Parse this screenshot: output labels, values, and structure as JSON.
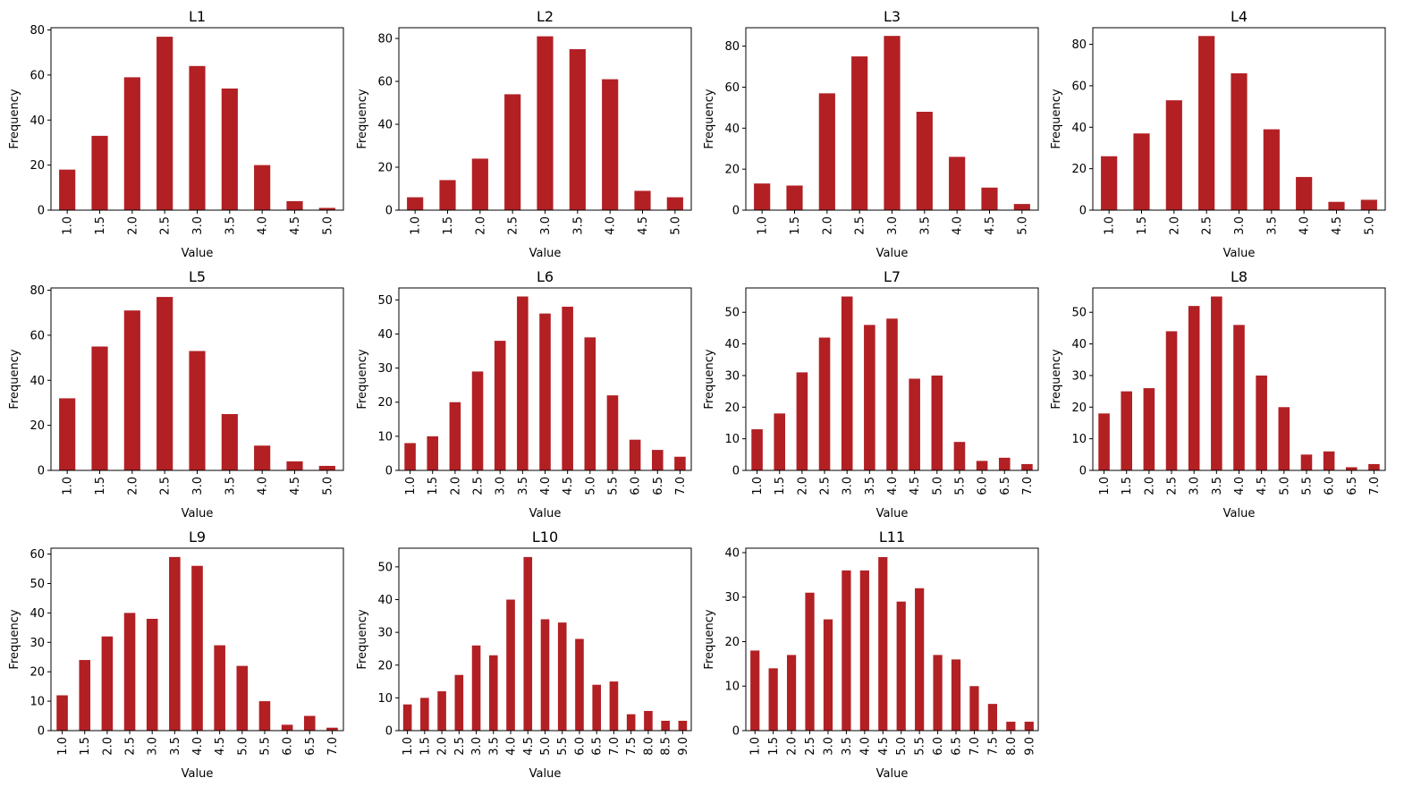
{
  "bar_color": "#b22024",
  "chart_data": [
    {
      "type": "bar",
      "title": "L1",
      "xlabel": "Value",
      "ylabel": "Frequency",
      "categories": [
        "1.0",
        "1.5",
        "2.0",
        "2.5",
        "3.0",
        "3.5",
        "4.0",
        "4.5",
        "5.0"
      ],
      "values": [
        18,
        33,
        59,
        77,
        64,
        54,
        20,
        4,
        1
      ],
      "ylim": [
        0,
        81
      ],
      "yticks": [
        0,
        20,
        40,
        60,
        80
      ]
    },
    {
      "type": "bar",
      "title": "L2",
      "xlabel": "Value",
      "ylabel": "Frequency",
      "categories": [
        "1.0",
        "1.5",
        "2.0",
        "2.5",
        "3.0",
        "3.5",
        "4.0",
        "4.5",
        "5.0"
      ],
      "values": [
        6,
        14,
        24,
        54,
        81,
        75,
        61,
        9,
        6
      ],
      "ylim": [
        0,
        85
      ],
      "yticks": [
        0,
        20,
        40,
        60,
        80
      ]
    },
    {
      "type": "bar",
      "title": "L3",
      "xlabel": "Value",
      "ylabel": "Frequency",
      "categories": [
        "1.0",
        "1.5",
        "2.0",
        "2.5",
        "3.0",
        "3.5",
        "4.0",
        "4.5",
        "5.0"
      ],
      "values": [
        13,
        12,
        57,
        75,
        85,
        48,
        26,
        11,
        3
      ],
      "ylim": [
        0,
        89
      ],
      "yticks": [
        0,
        20,
        40,
        60,
        80
      ]
    },
    {
      "type": "bar",
      "title": "L4",
      "xlabel": "Value",
      "ylabel": "Frequency",
      "categories": [
        "1.0",
        "1.5",
        "2.0",
        "2.5",
        "3.0",
        "3.5",
        "4.0",
        "4.5",
        "5.0"
      ],
      "values": [
        26,
        37,
        53,
        84,
        66,
        39,
        16,
        4,
        5
      ],
      "ylim": [
        0,
        88
      ],
      "yticks": [
        0,
        20,
        40,
        60,
        80
      ]
    },
    {
      "type": "bar",
      "title": "L5",
      "xlabel": "Value",
      "ylabel": "Frequency",
      "categories": [
        "1.0",
        "1.5",
        "2.0",
        "2.5",
        "3.0",
        "3.5",
        "4.0",
        "4.5",
        "5.0"
      ],
      "values": [
        32,
        55,
        71,
        77,
        53,
        25,
        11,
        4,
        2
      ],
      "ylim": [
        0,
        81
      ],
      "yticks": [
        0,
        20,
        40,
        60,
        80
      ]
    },
    {
      "type": "bar",
      "title": "L6",
      "xlabel": "Value",
      "ylabel": "Frequency",
      "categories": [
        "1.0",
        "1.5",
        "2.0",
        "2.5",
        "3.0",
        "3.5",
        "4.0",
        "4.5",
        "5.0",
        "5.5",
        "6.0",
        "6.5",
        "7.0"
      ],
      "values": [
        8,
        10,
        20,
        29,
        38,
        51,
        46,
        48,
        39,
        22,
        9,
        6,
        4
      ],
      "ylim": [
        0,
        53.5
      ],
      "yticks": [
        0,
        10,
        20,
        30,
        40,
        50
      ]
    },
    {
      "type": "bar",
      "title": "L7",
      "xlabel": "Value",
      "ylabel": "Frequency",
      "categories": [
        "1.0",
        "1.5",
        "2.0",
        "2.5",
        "3.0",
        "3.5",
        "4.0",
        "4.5",
        "5.0",
        "5.5",
        "6.0",
        "6.5",
        "7.0"
      ],
      "values": [
        13,
        18,
        31,
        42,
        55,
        46,
        48,
        29,
        30,
        9,
        3,
        4,
        2
      ],
      "ylim": [
        0,
        57.7
      ],
      "yticks": [
        0,
        10,
        20,
        30,
        40,
        50
      ]
    },
    {
      "type": "bar",
      "title": "L8",
      "xlabel": "Value",
      "ylabel": "Frequency",
      "categories": [
        "1.0",
        "1.5",
        "2.0",
        "2.5",
        "3.0",
        "3.5",
        "4.0",
        "4.5",
        "5.0",
        "5.5",
        "6.0",
        "6.5",
        "7.0"
      ],
      "values": [
        18,
        25,
        26,
        44,
        52,
        55,
        46,
        30,
        20,
        5,
        6,
        1,
        2
      ],
      "ylim": [
        0,
        57.7
      ],
      "yticks": [
        0,
        10,
        20,
        30,
        40,
        50
      ]
    },
    {
      "type": "bar",
      "title": "L9",
      "xlabel": "Value",
      "ylabel": "Frequency",
      "categories": [
        "1.0",
        "1.5",
        "2.0",
        "2.5",
        "3.0",
        "3.5",
        "4.0",
        "4.5",
        "5.0",
        "5.5",
        "6.0",
        "6.5",
        "7.0"
      ],
      "values": [
        12,
        24,
        32,
        40,
        38,
        59,
        56,
        29,
        22,
        10,
        2,
        5,
        1
      ],
      "ylim": [
        0,
        62
      ],
      "yticks": [
        0,
        10,
        20,
        30,
        40,
        50,
        60
      ]
    },
    {
      "type": "bar",
      "title": "L10",
      "xlabel": "Value",
      "ylabel": "Frequency",
      "categories": [
        "1.0",
        "1.5",
        "2.0",
        "2.5",
        "3.0",
        "3.5",
        "4.0",
        "4.5",
        "5.0",
        "5.5",
        "6.0",
        "6.5",
        "7.0",
        "7.5",
        "8.0",
        "8.5",
        "9.0"
      ],
      "values": [
        8,
        10,
        12,
        17,
        26,
        23,
        40,
        53,
        34,
        33,
        28,
        14,
        15,
        5,
        6,
        3,
        3
      ],
      "ylim": [
        0,
        55.7
      ],
      "yticks": [
        0,
        10,
        20,
        30,
        40,
        50
      ]
    },
    {
      "type": "bar",
      "title": "L11",
      "xlabel": "Value",
      "ylabel": "Frequency",
      "categories": [
        "1.0",
        "1.5",
        "2.0",
        "2.5",
        "3.0",
        "3.5",
        "4.0",
        "4.5",
        "5.0",
        "5.5",
        "6.0",
        "6.5",
        "7.0",
        "7.5",
        "8.0",
        "9.0"
      ],
      "values": [
        18,
        14,
        17,
        31,
        25,
        36,
        36,
        39,
        29,
        32,
        17,
        16,
        10,
        6,
        2,
        2
      ],
      "ylim": [
        0,
        41
      ],
      "yticks": [
        0,
        10,
        20,
        30,
        40
      ]
    }
  ]
}
